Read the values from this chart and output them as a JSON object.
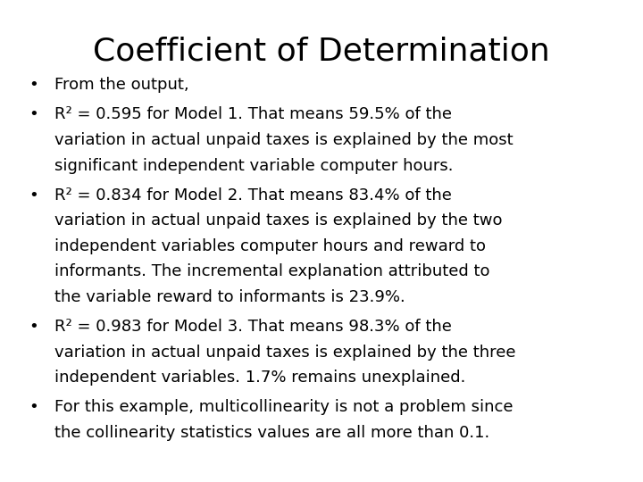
{
  "title": "Coefficient of Determination",
  "title_fontsize": 26,
  "background_color": "#ffffff",
  "text_color": "#000000",
  "bullet_font_size": 13.0,
  "title_font": "DejaVu Sans",
  "body_font": "DejaVu Sans",
  "bullets": [
    {
      "first_line": "From the output,",
      "rest_lines": []
    },
    {
      "first_line": "R² = 0.595 for Model 1. That means 59.5% of the",
      "rest_lines": [
        "variation in actual unpaid taxes is explained by the most",
        "significant independent variable computer hours."
      ]
    },
    {
      "first_line": "R² = 0.834 for Model 2. That means 83.4% of the",
      "rest_lines": [
        "variation in actual unpaid taxes is explained by the two",
        "independent variables computer hours and reward to",
        "informants. The incremental explanation attributed to",
        "the variable reward to informants is 23.9%."
      ]
    },
    {
      "first_line": "R² = 0.983 for Model 3. That means 98.3% of the",
      "rest_lines": [
        "variation in actual unpaid taxes is explained by the three",
        "independent variables. 1.7% remains unexplained."
      ]
    },
    {
      "first_line": "For this example, multicollinearity is not a problem since",
      "rest_lines": [
        "the collinearity statistics values are all more than 0.1."
      ]
    }
  ]
}
